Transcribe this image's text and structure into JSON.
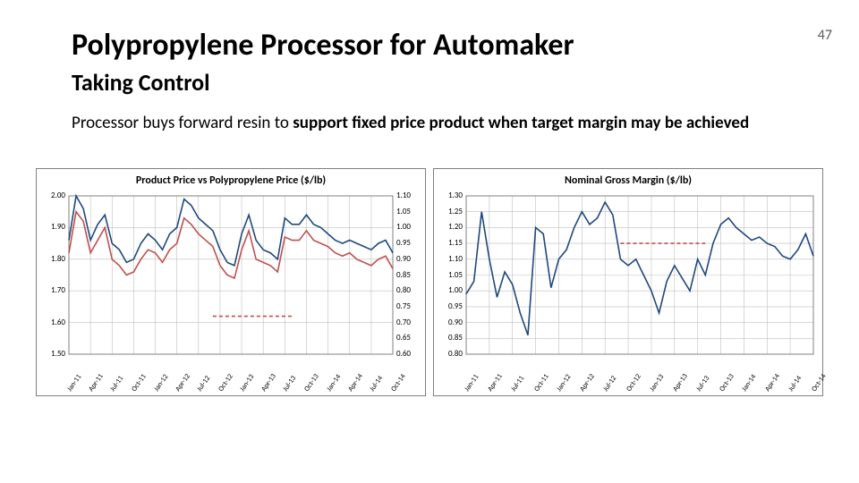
{
  "page_number": "47",
  "title": "Polypropylene Processor for  Automaker",
  "subtitle": "Taking Control",
  "description_pre": "Processor buys forward resin to ",
  "description_bold": "support fixed price product when target margin may be achieved",
  "chart1": {
    "title_pre": "Product Price ",
    "title_vs": "vs",
    "title_post": " Polypropylene Price ",
    "title_unit": "($/lb)",
    "type": "dual-axis-line",
    "x_labels": [
      "Jan-11",
      "Apr-11",
      "Jul-11",
      "Oct-11",
      "Jan-12",
      "Apr-12",
      "Jul-12",
      "Oct-12",
      "Jan-13",
      "Apr-13",
      "Jul-13",
      "Oct-13",
      "Jan-14",
      "Apr-14",
      "Jul-14",
      "Oct-14"
    ],
    "y_left": {
      "min": 1.5,
      "max": 2.0,
      "step": 0.1,
      "fmt": 2
    },
    "y_right": {
      "min": 0.6,
      "max": 1.1,
      "step": 0.05,
      "fmt": 2
    },
    "grid_color": "#bfbfbf",
    "series": [
      {
        "name": "product-price",
        "axis": "left",
        "color": "#1f497d",
        "dashed": false,
        "data": [
          1.86,
          2.0,
          1.96,
          1.86,
          1.91,
          1.94,
          1.85,
          1.83,
          1.79,
          1.8,
          1.85,
          1.88,
          1.86,
          1.83,
          1.88,
          1.9,
          1.99,
          1.97,
          1.93,
          1.91,
          1.89,
          1.83,
          1.79,
          1.78,
          1.88,
          1.94,
          1.86,
          1.83,
          1.82,
          1.8,
          1.93,
          1.91,
          1.91,
          1.94,
          1.91,
          1.9,
          1.88,
          1.86,
          1.85,
          1.86,
          1.85,
          1.84,
          1.83,
          1.85,
          1.86,
          1.82
        ]
      },
      {
        "name": "polypropylene-price",
        "axis": "right",
        "color": "#c0504d",
        "dashed": false,
        "data": [
          0.92,
          1.05,
          1.02,
          0.92,
          0.96,
          1.0,
          0.9,
          0.88,
          0.85,
          0.86,
          0.9,
          0.93,
          0.92,
          0.89,
          0.93,
          0.95,
          1.03,
          1.01,
          0.98,
          0.96,
          0.94,
          0.88,
          0.85,
          0.84,
          0.93,
          0.99,
          0.9,
          0.89,
          0.88,
          0.86,
          0.97,
          0.96,
          0.96,
          0.99,
          0.96,
          0.95,
          0.94,
          0.92,
          0.91,
          0.92,
          0.9,
          0.89,
          0.88,
          0.9,
          0.91,
          0.87
        ]
      },
      {
        "name": "fixed-product-price",
        "axis": "left",
        "color": "#c0504d",
        "dashed": true,
        "start_index": 20,
        "data": [
          1.62,
          1.62,
          1.62,
          1.62,
          1.62,
          1.62,
          1.62,
          1.62,
          1.62,
          1.62,
          1.62,
          1.62
        ]
      }
    ],
    "plot_bg": "#ffffff"
  },
  "chart2": {
    "title_pre": "Nominal Gross Margin ",
    "title_unit": "($/lb)",
    "type": "line",
    "x_labels": [
      "Jan-11",
      "Apr-11",
      "Jul-11",
      "Oct-11",
      "Jan-12",
      "Apr-12",
      "Jul-12",
      "Oct-12",
      "Jan-13",
      "Apr-13",
      "Jul-13",
      "Oct-13",
      "Jan-14",
      "Apr-14",
      "Jul-14",
      "Oct-14"
    ],
    "y_left": {
      "min": 0.8,
      "max": 1.3,
      "step": 0.05,
      "fmt": 2
    },
    "grid_color": "#bfbfbf",
    "series": [
      {
        "name": "gross-margin",
        "axis": "left",
        "color": "#1f497d",
        "dashed": false,
        "data": [
          0.99,
          1.03,
          1.25,
          1.1,
          0.98,
          1.06,
          1.02,
          0.93,
          0.86,
          1.2,
          1.18,
          1.01,
          1.1,
          1.13,
          1.2,
          1.25,
          1.21,
          1.23,
          1.28,
          1.24,
          1.1,
          1.08,
          1.1,
          1.05,
          1.0,
          0.93,
          1.03,
          1.08,
          1.04,
          1.0,
          1.1,
          1.05,
          1.15,
          1.21,
          1.23,
          1.2,
          1.18,
          1.16,
          1.17,
          1.15,
          1.14,
          1.11,
          1.1,
          1.13,
          1.18,
          1.11
        ]
      },
      {
        "name": "target-margin",
        "axis": "left",
        "color": "#c0504d",
        "dashed": true,
        "start_index": 20,
        "data": [
          1.15,
          1.15,
          1.15,
          1.15,
          1.15,
          1.15,
          1.15,
          1.15,
          1.15,
          1.15,
          1.15,
          1.15
        ]
      }
    ],
    "plot_bg": "#ffffff"
  },
  "colors": {
    "axis": "#808080",
    "text": "#000000"
  }
}
